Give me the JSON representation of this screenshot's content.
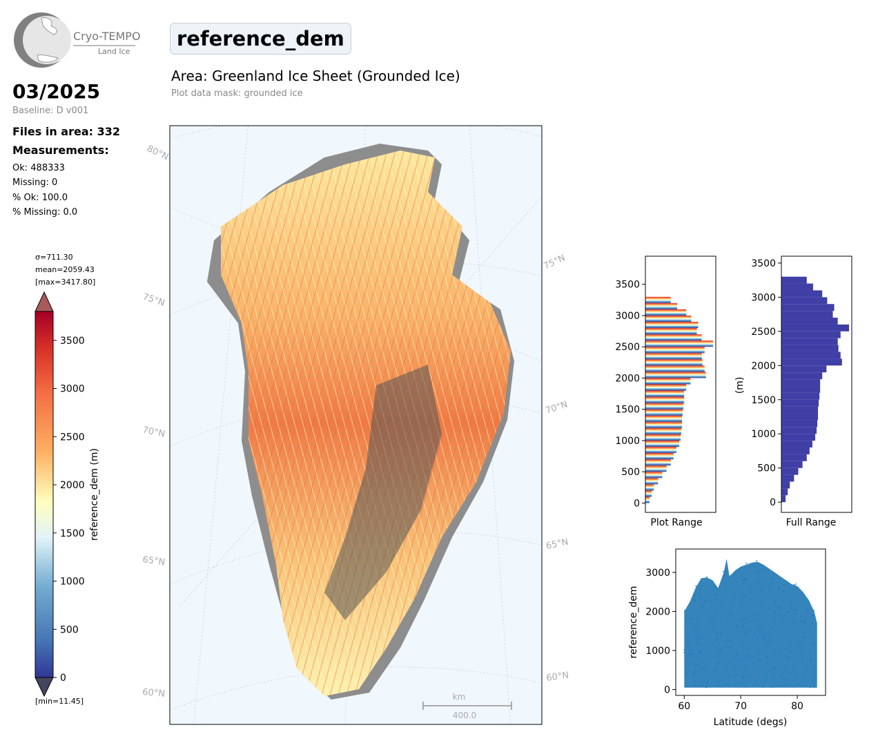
{
  "logo": {
    "line1": "Cryo-TEMPO",
    "line2": "Land Ice"
  },
  "header": {
    "title": "reference_dem",
    "area_title": "Area: Greenland Ice Sheet (Grounded Ice)",
    "mask_label": "Plot data mask: grounded ice"
  },
  "sidebar": {
    "period": "03/2025",
    "baseline": "Baseline: D v001",
    "files": "Files in area: 332",
    "measurements_heading": "Measurements:",
    "ok": "Ok: 488333",
    "missing": "Missing: 0",
    "pct_ok": "% Ok: 100.0",
    "pct_missing": "% Missing: 0.0"
  },
  "colorbar": {
    "sigma": "σ=711.30",
    "mean": "mean=2059.43",
    "max": "[max=3417.80]",
    "min": "[min=11.45]",
    "label": "reference_dem (m)",
    "ticks": [
      "0",
      "500",
      "1000",
      "1500",
      "2000",
      "2500",
      "3000",
      "3500"
    ],
    "range": [
      0,
      3800
    ]
  },
  "map": {
    "lat_labels": [
      "80°N",
      "75°N",
      "70°N",
      "65°N",
      "60°N",
      "75°N",
      "70°N",
      "65°N",
      "60°N"
    ],
    "scale_unit": "km",
    "scale_value": "400.0",
    "ocean_color": "#f0f7fd"
  },
  "chart_data": [
    {
      "type": "bar",
      "orientation": "horizontal",
      "xlabel": "Plot Range",
      "ylabel": "",
      "ylim": [
        -150,
        3950
      ],
      "yticks": [
        "0",
        "500",
        "1000",
        "1500",
        "2000",
        "2500",
        "3000",
        "3500"
      ],
      "colormap": "RdYlBu_r",
      "bins": [
        0,
        100,
        200,
        300,
        400,
        500,
        600,
        700,
        800,
        900,
        1000,
        1100,
        1200,
        1300,
        1400,
        1500,
        1600,
        1700,
        1800,
        1900,
        2000,
        2100,
        2200,
        2300,
        2400,
        2500,
        2600,
        2700,
        2800,
        2900,
        3000,
        3100,
        3200
      ],
      "values": [
        6,
        9,
        12,
        18,
        24,
        30,
        36,
        40,
        44,
        48,
        50,
        51,
        52,
        52,
        53,
        54,
        55,
        55,
        58,
        64,
        86,
        84,
        81,
        80,
        84,
        96,
        80,
        73,
        75,
        65,
        58,
        45,
        36
      ]
    },
    {
      "type": "bar",
      "orientation": "horizontal",
      "xlabel": "Full Range",
      "ylabel": "(m)",
      "ylim": [
        -150,
        3600
      ],
      "yticks": [
        "0",
        "500",
        "1000",
        "1500",
        "2000",
        "2500",
        "3000",
        "3500"
      ],
      "color": "#3f3fa6",
      "bins": [
        0,
        100,
        200,
        300,
        400,
        500,
        600,
        700,
        800,
        900,
        1000,
        1100,
        1200,
        1300,
        1400,
        1500,
        1600,
        1700,
        1800,
        1900,
        2000,
        2100,
        2200,
        2300,
        2400,
        2500,
        2600,
        2700,
        2800,
        2900,
        3000,
        3100,
        3200
      ],
      "values": [
        6,
        9,
        12,
        18,
        24,
        30,
        36,
        40,
        44,
        48,
        50,
        51,
        52,
        52,
        53,
        54,
        55,
        55,
        58,
        64,
        86,
        84,
        81,
        80,
        84,
        96,
        80,
        73,
        75,
        65,
        58,
        45,
        36
      ]
    },
    {
      "type": "scatter",
      "xlabel": "Latitude (degs)",
      "ylabel": "reference_dem",
      "xlim": [
        58.5,
        85
      ],
      "ylim": [
        -150,
        3600
      ],
      "xticks": [
        "60",
        "70",
        "80"
      ],
      "yticks": [
        "0",
        "1000",
        "2000",
        "3000"
      ],
      "color": "#1f77b4",
      "upper_envelope": {
        "x": [
          60,
          61,
          62,
          63,
          64,
          65,
          66,
          67,
          67.5,
          68,
          69,
          70,
          71,
          72,
          73,
          74,
          75,
          76,
          77,
          78,
          79,
          80,
          81,
          82,
          83,
          83.5
        ],
        "y": [
          2000,
          2250,
          2600,
          2850,
          2870,
          2800,
          2600,
          3000,
          3350,
          2900,
          3050,
          3150,
          3200,
          3250,
          3270,
          3200,
          3100,
          3000,
          2900,
          2800,
          2700,
          2650,
          2500,
          2300,
          2000,
          1700
        ]
      },
      "lower_envelope": {
        "x": [
          60,
          83.5
        ],
        "y": [
          50,
          50
        ]
      }
    }
  ]
}
